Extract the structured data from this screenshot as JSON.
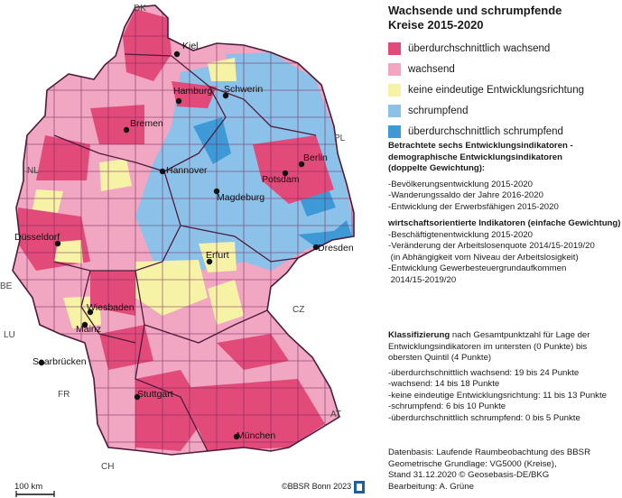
{
  "title_line1": "Wachsende und schrumpfende",
  "title_line2": "Kreise 2015-2020",
  "legend": [
    {
      "label": "überdurchschnittlich wachsend",
      "color": "#e24a7a"
    },
    {
      "label": "wachsend",
      "color": "#f1a6c2"
    },
    {
      "label": "keine eindeutige Entwicklungsrichtung",
      "color": "#f6f2a6"
    },
    {
      "label": "schrumpfend",
      "color": "#8cc2e9"
    },
    {
      "label": "überdurchschnittlich schrumpfend",
      "color": "#3d9ad7"
    }
  ],
  "indicators": {
    "heading": "Betrachtete sechs Entwicklungsindikatoren  -",
    "heading2": "demographische Entwicklungsindikatoren",
    "heading3": "(doppelte Gewichtung):",
    "demo": [
      "Bevölkerungsentwicklung 2015-2020",
      "Wanderungssaldo der Jahre 2016-2020",
      "Entwicklung der Erwerbsfähigen 2015-2020"
    ],
    "econ_heading": "wirtschaftsorientierte Indikatoren (einfache Gewichtung)",
    "econ": [
      "Beschäftigtenentwicklung 2015-2020",
      "Veränderung der Arbeitslosenquote 2014/15-2019/20",
      "(in Abhängigkeit vom Niveau der Arbeitslosigkeit)",
      "Entwicklung Gewerbesteuergrundaufkommen",
      "2014/15-2019/20"
    ]
  },
  "classification": {
    "lead": "Klassifizierung",
    "text1": " nach Gesamtpunktzahl für Lage der",
    "text2": "Entwicklungsindikatoren im untersten (0 Punkte) bis",
    "text3": "obersten Quintil (4 Punkte)",
    "items": [
      "überdurchschnittlich wachsend: 19 bis 24 Punkte",
      "wachsend: 14 bis 18 Punkte",
      "keine eindeutige Entwicklungsrichtung: 11 bis 13 Punkte",
      "schrumpfend: 6 bis 10 Punkte",
      "überdurchschnittlich schrumpfend: 0 bis 5 Punkte"
    ]
  },
  "source": [
    "Datenbasis: Laufende Raumbeobachtung des BBSR",
    "Geometrische Grundlage: VG5000 (Kreise),",
    "Stand 31.12.2020 © Geosebasis-DE/BKG",
    "Bearbeitung: A. Grüne"
  ],
  "credit": "©BBSR Bonn 2023",
  "scale": "100 km",
  "cities": [
    "Kiel",
    "Hamburg",
    "Schwerin",
    "Bremen",
    "Berlin",
    "Hannover",
    "Potsdam",
    "Magdeburg",
    "Düsseldorf",
    "Erfurt",
    "Dresden",
    "Wiesbaden",
    "Mainz",
    "Saarbrücken",
    "Stuttgart",
    "München"
  ],
  "countries": [
    "DK",
    "PL",
    "NL",
    "BE",
    "LU",
    "FR",
    "CZ",
    "AT",
    "CH"
  ]
}
